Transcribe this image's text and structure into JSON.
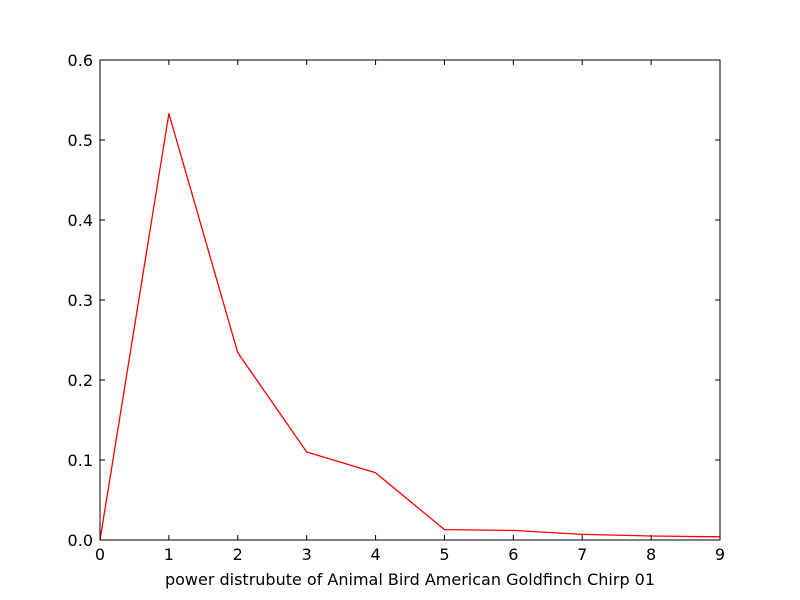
{
  "chart_data": {
    "type": "line",
    "title": "",
    "xlabel": "power distrubute of Animal Bird American Goldfinch Chirp 01",
    "ylabel": "",
    "xlim": [
      0,
      9
    ],
    "ylim": [
      0,
      0.6
    ],
    "xticks": [
      0,
      1,
      2,
      3,
      4,
      5,
      6,
      7,
      8,
      9
    ],
    "yticks": [
      0.0,
      0.1,
      0.2,
      0.3,
      0.4,
      0.5,
      0.6
    ],
    "xtick_labels": [
      "0",
      "1",
      "2",
      "3",
      "4",
      "5",
      "6",
      "7",
      "8",
      "9"
    ],
    "ytick_labels": [
      "0.0",
      "0.1",
      "0.2",
      "0.3",
      "0.4",
      "0.5",
      "0.6"
    ],
    "grid": false,
    "legend": "none",
    "series": [
      {
        "color": "#ff0000",
        "x": [
          0,
          1,
          2,
          3,
          4,
          5,
          6,
          7,
          8,
          9
        ],
        "y": [
          0.0,
          0.533,
          0.234,
          0.11,
          0.084,
          0.013,
          0.012,
          0.007,
          0.005,
          0.004
        ]
      }
    ]
  }
}
